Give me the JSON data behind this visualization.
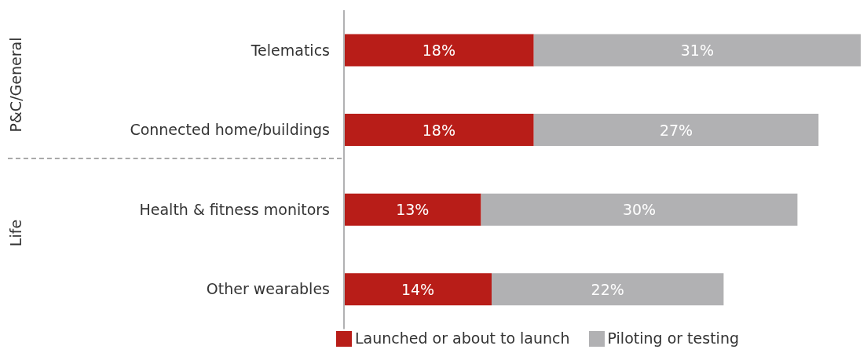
{
  "chart_data": {
    "type": "bar",
    "orientation": "horizontal",
    "stacked": true,
    "legend": "bottom",
    "categories": [
      "Telematics",
      "Connected home/buildings",
      "Health & fitness monitors",
      "Other wearables"
    ],
    "series": [
      {
        "name": "Launched or about to launch",
        "color": "#b81d18",
        "values": [
          18,
          18,
          13,
          14
        ],
        "value_labels": [
          "18%",
          "18%",
          "13%",
          "14%"
        ]
      },
      {
        "name": "Piloting or testing",
        "color": "#b1b1b3",
        "values": [
          31,
          27,
          30,
          22
        ],
        "value_labels": [
          "31%",
          "27%",
          "30%",
          "22%"
        ]
      }
    ],
    "annotations": [
      "P&C/General",
      "Life"
    ]
  }
}
